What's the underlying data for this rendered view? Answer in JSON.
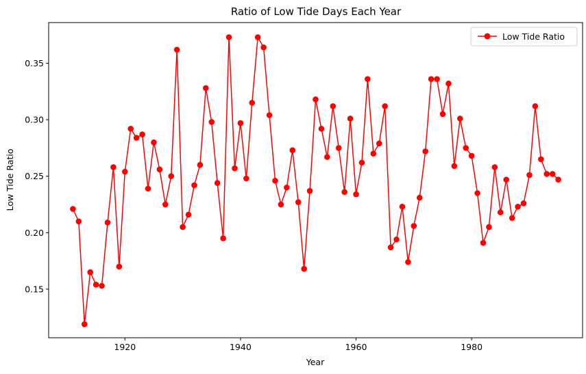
{
  "chart_data": {
    "type": "line",
    "title": "Ratio of Low Tide Days Each Year",
    "xlabel": "Year",
    "ylabel": "Low Tide Ratio",
    "xlim": [
      1906.8,
      1999.2
    ],
    "ylim": [
      0.107,
      0.386
    ],
    "xticks": [
      1920,
      1940,
      1960,
      1980
    ],
    "yticks": [
      0.15,
      0.2,
      0.25,
      0.3,
      0.35
    ],
    "ytick_labels": [
      "0.15",
      "0.20",
      "0.25",
      "0.30",
      "0.35"
    ],
    "grid": false,
    "legend_position": "top-right",
    "series": [
      {
        "name": "Low Tide Ratio",
        "color": "#ff0000",
        "marker": "circle",
        "x": [
          1911,
          1912,
          1913,
          1914,
          1915,
          1916,
          1917,
          1918,
          1919,
          1920,
          1921,
          1922,
          1923,
          1924,
          1925,
          1926,
          1927,
          1928,
          1929,
          1930,
          1931,
          1932,
          1933,
          1934,
          1935,
          1936,
          1937,
          1938,
          1939,
          1940,
          1941,
          1942,
          1943,
          1944,
          1945,
          1946,
          1947,
          1948,
          1949,
          1950,
          1951,
          1952,
          1953,
          1954,
          1955,
          1956,
          1957,
          1958,
          1959,
          1960,
          1961,
          1962,
          1963,
          1964,
          1965,
          1966,
          1967,
          1968,
          1969,
          1970,
          1971,
          1972,
          1973,
          1974,
          1975,
          1976,
          1977,
          1978,
          1979,
          1980,
          1981,
          1982,
          1983,
          1984,
          1985,
          1986,
          1987,
          1988,
          1989,
          1990,
          1991,
          1992,
          1993,
          1994,
          1995
        ],
        "y": [
          0.221,
          0.21,
          0.119,
          0.165,
          0.154,
          0.153,
          0.209,
          0.258,
          0.17,
          0.254,
          0.292,
          0.284,
          0.287,
          0.239,
          0.28,
          0.256,
          0.225,
          0.25,
          0.362,
          0.205,
          0.216,
          0.242,
          0.26,
          0.328,
          0.298,
          0.244,
          0.195,
          0.373,
          0.257,
          0.297,
          0.248,
          0.315,
          0.373,
          0.364,
          0.304,
          0.246,
          0.225,
          0.24,
          0.273,
          0.227,
          0.168,
          0.237,
          0.318,
          0.292,
          0.267,
          0.312,
          0.275,
          0.236,
          0.301,
          0.234,
          0.262,
          0.336,
          0.27,
          0.279,
          0.312,
          0.187,
          0.194,
          0.223,
          0.174,
          0.206,
          0.231,
          0.272,
          0.336,
          0.336,
          0.305,
          0.332,
          0.259,
          0.301,
          0.275,
          0.268,
          0.235,
          0.191,
          0.205,
          0.258,
          0.218,
          0.247,
          0.213,
          0.223,
          0.226,
          0.251,
          0.312,
          0.265,
          0.252,
          0.252,
          0.247
        ]
      }
    ]
  }
}
